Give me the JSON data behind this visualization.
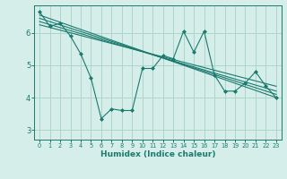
{
  "xlabel": "Humidex (Indice chaleur)",
  "xlim": [
    -0.5,
    23.5
  ],
  "ylim": [
    2.7,
    6.85
  ],
  "yticks": [
    3,
    4,
    5,
    6
  ],
  "xticks": [
    0,
    1,
    2,
    3,
    4,
    5,
    6,
    7,
    8,
    9,
    10,
    11,
    12,
    13,
    14,
    15,
    16,
    17,
    18,
    19,
    20,
    21,
    22,
    23
  ],
  "bg_color": "#d6eeea",
  "line_color": "#1a7a6e",
  "grid_color": "#aed4cc",
  "scatter_line": {
    "x": [
      0,
      1,
      2,
      3,
      4,
      5,
      6,
      7,
      8,
      9,
      10,
      11,
      12,
      13,
      14,
      15,
      16,
      17,
      18,
      19,
      20,
      21,
      22,
      23
    ],
    "y": [
      6.65,
      6.2,
      6.3,
      5.9,
      5.35,
      4.6,
      3.35,
      3.65,
      3.6,
      3.6,
      4.9,
      4.9,
      5.3,
      5.2,
      6.05,
      5.4,
      6.05,
      4.7,
      4.2,
      4.2,
      4.45,
      4.8,
      4.35,
      4.0
    ]
  },
  "trend_lines": [
    {
      "x": [
        0,
        23
      ],
      "y": [
        6.55,
        4.0
      ]
    },
    {
      "x": [
        0,
        23
      ],
      "y": [
        6.45,
        4.1
      ]
    },
    {
      "x": [
        0,
        23
      ],
      "y": [
        6.35,
        4.2
      ]
    },
    {
      "x": [
        0,
        23
      ],
      "y": [
        6.25,
        4.35
      ]
    }
  ],
  "xlabel_fontsize": 6.5,
  "xtick_fontsize": 4.8,
  "ytick_fontsize": 6.0
}
